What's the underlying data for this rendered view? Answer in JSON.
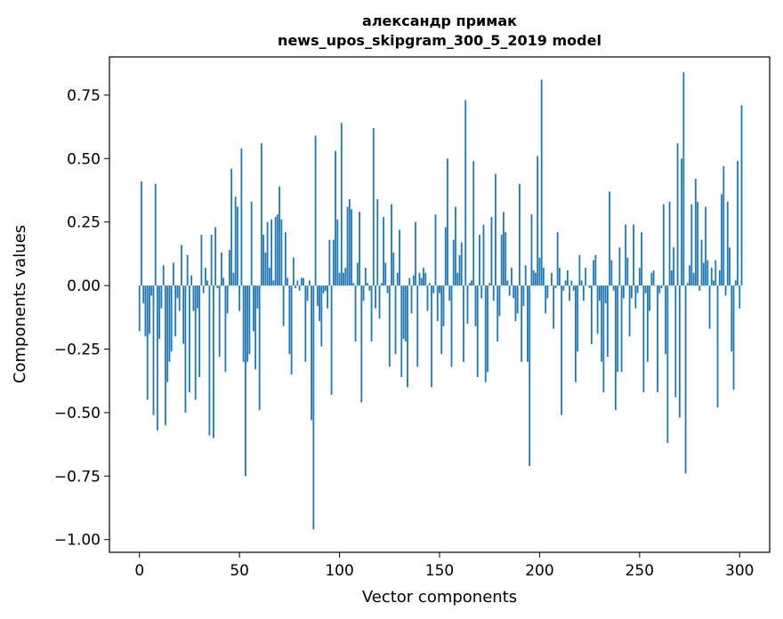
{
  "chart_data": {
    "type": "bar",
    "title_line1": "александр примак",
    "title_line2": "news_upos_skipgram_300_5_2019 model",
    "xlabel": "Vector components",
    "ylabel": "Components values",
    "xlim": [
      -15,
      315
    ],
    "ylim": [
      -1.05,
      0.9
    ],
    "xticks": [
      0,
      50,
      100,
      150,
      200,
      250,
      300
    ],
    "xtick_labels": [
      "0",
      "50",
      "100",
      "150",
      "200",
      "250",
      "300"
    ],
    "yticks": [
      0.75,
      0.5,
      0.25,
      0.0,
      -0.25,
      -0.5,
      -0.75,
      -1.0
    ],
    "ytick_labels": [
      "0.75",
      "0.50",
      "0.25",
      "0.00",
      "−0.25",
      "−0.50",
      "−0.75",
      "−1.00"
    ],
    "bar_color": "#1f77b4",
    "values": [
      -0.18,
      0.41,
      -0.07,
      -0.2,
      -0.45,
      -0.19,
      -0.04,
      -0.51,
      0.4,
      -0.57,
      -0.21,
      -0.09,
      0.08,
      -0.55,
      -0.38,
      -0.3,
      -0.26,
      0.09,
      -0.2,
      -0.05,
      -0.1,
      0.16,
      -0.23,
      -0.5,
      0.12,
      -0.42,
      0.04,
      -0.1,
      -0.45,
      -0.09,
      -0.36,
      0.2,
      -0.03,
      0.07,
      0.02,
      -0.59,
      0.2,
      -0.6,
      0.23,
      -0.01,
      -0.28,
      0.13,
      0.03,
      -0.34,
      -0.11,
      0.14,
      0.46,
      0.05,
      0.35,
      0.31,
      -0.1,
      0.54,
      -0.3,
      -0.75,
      -0.3,
      -0.27,
      0.33,
      -0.18,
      -0.33,
      -0.09,
      -0.49,
      0.56,
      0.2,
      0.13,
      0.25,
      0.07,
      0.26,
      0.02,
      0.27,
      0.28,
      0.39,
      0.26,
      -0.16,
      0.21,
      0.03,
      -0.27,
      -0.35,
      0.11,
      -0.01,
      0.02,
      -0.02,
      0.03,
      0.03,
      -0.3,
      -0.06,
      0.02,
      -0.53,
      -0.96,
      0.59,
      -0.08,
      -0.14,
      -0.24,
      -0.03,
      -0.02,
      -0.09,
      0.18,
      -0.43,
      0.18,
      0.53,
      0.26,
      0.05,
      0.64,
      0.05,
      0.07,
      0.31,
      0.34,
      0.3,
      0.01,
      -0.22,
      0.09,
      0.29,
      -0.46,
      -0.06,
      0.07,
      0.01,
      -0.02,
      -0.22,
      0.62,
      -0.09,
      0.34,
      -0.13,
      0.01,
      0.27,
      0.09,
      -0.03,
      -0.32,
      0.32,
      0.13,
      -0.27,
      0.05,
      0.22,
      -0.36,
      -0.21,
      -0.22,
      -0.4,
      0.03,
      -0.11,
      0.04,
      0.25,
      -0.32,
      0.05,
      0.03,
      0.07,
      0.05,
      -0.1,
      0.01,
      -0.4,
      -0.03,
      0.28,
      -0.14,
      -0.03,
      -0.27,
      -0.16,
      0.23,
      0.5,
      -0.06,
      -0.32,
      0.18,
      0.31,
      0.05,
      0.12,
      0.17,
      -0.3,
      0.73,
      -0.15,
      0.01,
      0.02,
      0.49,
      -0.16,
      -0.36,
      0.2,
      -0.05,
      0.24,
      -0.38,
      -0.34,
      0.01,
      0.27,
      -0.06,
      0.44,
      -0.22,
      -0.12,
      0.2,
      0.29,
      0.21,
      0.02,
      -0.04,
      0.07,
      -0.05,
      -0.14,
      -0.11,
      0.4,
      -0.3,
      -0.08,
      0.08,
      -0.3,
      -0.71,
      0.28,
      0.06,
      0.05,
      0.51,
      0.11,
      0.81,
      0.07,
      -0.11,
      -0.05,
      0.0,
      0.05,
      -0.17,
      -0.01,
      0.21,
      0.07,
      -0.51,
      -0.02,
      0.02,
      0.06,
      -0.06,
      0.02,
      -0.02,
      -0.38,
      -0.26,
      0.12,
      0.02,
      -0.06,
      0.07,
      0.0,
      -0.01,
      -0.23,
      0.1,
      0.12,
      -0.19,
      -0.06,
      -0.3,
      -0.42,
      -0.07,
      -0.28,
      0.37,
      0.1,
      -0.02,
      -0.49,
      -0.34,
      0.15,
      -0.34,
      -0.05,
      0.24,
      0.11,
      -0.2,
      -0.05,
      0.24,
      -0.09,
      -0.03,
      0.07,
      0.21,
      -0.42,
      -0.03,
      -0.3,
      -0.1,
      0.05,
      0.06,
      0.0,
      -0.42,
      -0.03,
      -0.01,
      0.32,
      -0.27,
      -0.62,
      0.33,
      0.06,
      0.15,
      -0.44,
      0.56,
      -0.52,
      0.5,
      0.84,
      -0.74,
      0.01,
      0.08,
      0.32,
      0.05,
      0.42,
      0.33,
      -0.02,
      0.18,
      0.09,
      0.31,
      0.1,
      -0.17,
      0.07,
      0.02,
      0.1,
      -0.48,
      0.06,
      0.36,
      0.47,
      -0.04,
      0.33,
      0.15,
      -0.26,
      -0.41,
      0.02,
      0.49,
      -0.09,
      0.71
    ]
  }
}
